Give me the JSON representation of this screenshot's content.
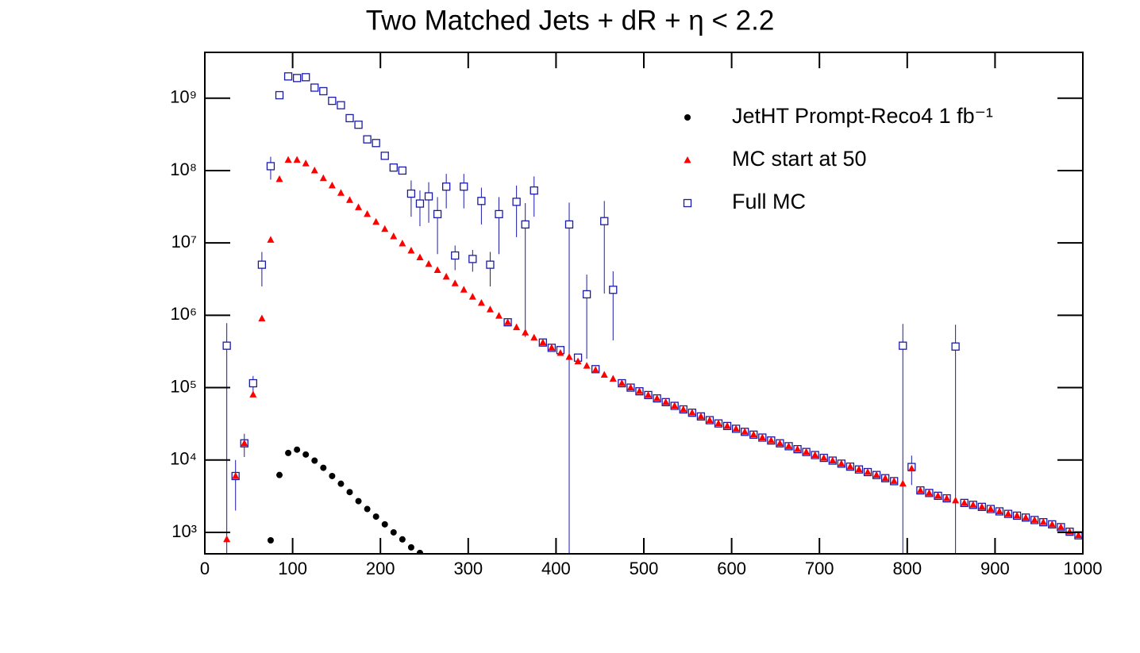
{
  "chart_data": {
    "type": "scatter",
    "title": "Two Matched Jets + dR + η < 2.2",
    "log_y": true,
    "legend": "top-right",
    "xlim": [
      0,
      1000
    ],
    "xticks": [
      0,
      100,
      200,
      300,
      400,
      500,
      600,
      700,
      800,
      900,
      1000
    ],
    "ylim": [
      505,
      4300000000
    ],
    "yticks": [
      {
        "value": 1000,
        "label": "10³"
      },
      {
        "value": 10000,
        "label": "10⁴"
      },
      {
        "value": 100000,
        "label": "10⁵"
      },
      {
        "value": 1000000,
        "label": "10⁶"
      },
      {
        "value": 10000000,
        "label": "10⁷"
      },
      {
        "value": 100000000,
        "label": "10⁸"
      },
      {
        "value": 1000000000,
        "label": "10⁹"
      }
    ],
    "series": [
      {
        "name": "JetHT Prompt-Reco4 1 fb⁻¹",
        "color": "#000000",
        "marker": "circle",
        "x": [
          75,
          85,
          95,
          105,
          115,
          125,
          135,
          145,
          155,
          165,
          175,
          185,
          195,
          205,
          215,
          225,
          235,
          245
        ],
        "values": [
          776,
          6200,
          12500,
          13900,
          11900,
          9800,
          7800,
          6000,
          4700,
          3600,
          2700,
          2100,
          1650,
          1290,
          1000,
          800,
          620,
          520
        ]
      },
      {
        "name": "Full MC",
        "color": "#1a1aa8",
        "marker": "square",
        "x": [
          25,
          35,
          45,
          55,
          65,
          75,
          85,
          95,
          105,
          115,
          125,
          135,
          145,
          155,
          165,
          175,
          185,
          195,
          205,
          215,
          225,
          235,
          245,
          255,
          265,
          275,
          285,
          295,
          305,
          315,
          325,
          335,
          345,
          355,
          365,
          375,
          385,
          395,
          405,
          415,
          425,
          435,
          445,
          455,
          465,
          475,
          485,
          495,
          505,
          515,
          525,
          535,
          545,
          555,
          565,
          575,
          585,
          595,
          605,
          615,
          625,
          635,
          645,
          655,
          665,
          675,
          685,
          695,
          705,
          715,
          725,
          735,
          745,
          755,
          765,
          775,
          785,
          795,
          805,
          815,
          825,
          835,
          845,
          855,
          865,
          875,
          885,
          895,
          905,
          915,
          925,
          935,
          945,
          955,
          965,
          975,
          985,
          995
        ],
        "values": [
          380000,
          6000,
          17000,
          115000,
          5000000,
          115000000,
          1100000000,
          2000000000,
          1900000000,
          1950000000,
          1400000000,
          1250000000,
          920000000,
          800000000,
          530000000,
          430000000,
          270000000,
          240000000,
          160000000,
          110000000,
          100000000,
          48000000,
          35000000,
          44000000,
          25000000,
          60000000,
          6700000,
          60000000,
          6000000,
          38000000,
          5000000,
          25000000,
          800000,
          37000000,
          18000000,
          53000000,
          420000,
          355000,
          330000,
          18000000,
          260000,
          1950000,
          180000,
          20000000,
          2250000,
          115000,
          100000,
          89000,
          79000,
          71000,
          63000,
          56000,
          50000,
          45000,
          40000,
          35500,
          32000,
          29500,
          27000,
          24500,
          22400,
          20400,
          18600,
          17000,
          15500,
          14100,
          12900,
          11700,
          10700,
          9800,
          8900,
          8100,
          7400,
          6800,
          6200,
          5600,
          5100,
          380000,
          8000,
          3800,
          3500,
          3200,
          2950,
          370000,
          2550,
          2400,
          2250,
          2100,
          1950,
          1800,
          1700,
          1600,
          1480,
          1380,
          1290,
          1180,
          1020,
          910
        ],
        "errors": [
          400000,
          4000,
          6000,
          30000,
          2500000,
          40000000,
          null,
          null,
          null,
          null,
          null,
          null,
          null,
          null,
          null,
          null,
          null,
          null,
          null,
          null,
          null,
          25000000,
          18000000,
          25000000,
          18000000,
          30000000,
          2500000,
          30000000,
          2000000,
          20000000,
          2500000,
          18000000,
          null,
          25000000,
          17500000,
          30000000,
          null,
          null,
          null,
          18000000,
          null,
          1700000,
          null,
          18000000,
          1800000,
          null,
          null,
          null,
          null,
          null,
          null,
          null,
          null,
          null,
          null,
          null,
          null,
          null,
          null,
          null,
          null,
          null,
          null,
          null,
          null,
          null,
          null,
          null,
          null,
          null,
          null,
          null,
          null,
          null,
          null,
          null,
          null,
          380000,
          3500,
          null,
          null,
          null,
          null,
          370000,
          null,
          null,
          null,
          null,
          null,
          null,
          null,
          null,
          null,
          null,
          null,
          null,
          null,
          null
        ]
      },
      {
        "name": "MC start at 50",
        "color": "#ff0000",
        "marker": "triangle",
        "x": [
          25,
          35,
          45,
          55,
          65,
          75,
          85,
          95,
          105,
          115,
          125,
          135,
          145,
          155,
          165,
          175,
          185,
          195,
          205,
          215,
          225,
          235,
          245,
          255,
          265,
          275,
          285,
          295,
          305,
          315,
          325,
          335,
          345,
          355,
          365,
          375,
          385,
          395,
          405,
          415,
          425,
          435,
          445,
          455,
          465,
          475,
          485,
          495,
          505,
          515,
          525,
          535,
          545,
          555,
          565,
          575,
          585,
          595,
          605,
          615,
          625,
          635,
          645,
          655,
          665,
          675,
          685,
          695,
          705,
          715,
          725,
          735,
          745,
          755,
          765,
          775,
          785,
          795,
          805,
          815,
          825,
          835,
          845,
          855,
          865,
          875,
          885,
          895,
          905,
          915,
          925,
          935,
          945,
          955,
          965,
          975,
          985,
          995
        ],
        "values": [
          800,
          6000,
          17000,
          80000,
          900000,
          11000000,
          76000000,
          140000000,
          140000000,
          125000000,
          100000000,
          78000000,
          62000000,
          49000000,
          39000000,
          31000000,
          25000000,
          19500000,
          15500000,
          12300000,
          9800000,
          7800000,
          6300000,
          5100000,
          4200000,
          3400000,
          2750000,
          2250000,
          1800000,
          1480000,
          1200000,
          980000,
          800000,
          680000,
          575000,
          490000,
          420000,
          355000,
          300000,
          265000,
          230000,
          200000,
          175000,
          150000,
          132000,
          115000,
          100000,
          89000,
          79000,
          71000,
          63000,
          56000,
          50000,
          45000,
          40000,
          35500,
          32000,
          29500,
          27000,
          24500,
          22400,
          20400,
          18600,
          17000,
          15500,
          14100,
          12900,
          11700,
          10700,
          9800,
          8900,
          8100,
          7400,
          6800,
          6200,
          5600,
          5100,
          4700,
          7600,
          3800,
          3500,
          3200,
          2950,
          2750,
          2550,
          2400,
          2250,
          2100,
          1950,
          1800,
          1700,
          1600,
          1480,
          1380,
          1290,
          1180,
          1020,
          910
        ]
      }
    ]
  }
}
